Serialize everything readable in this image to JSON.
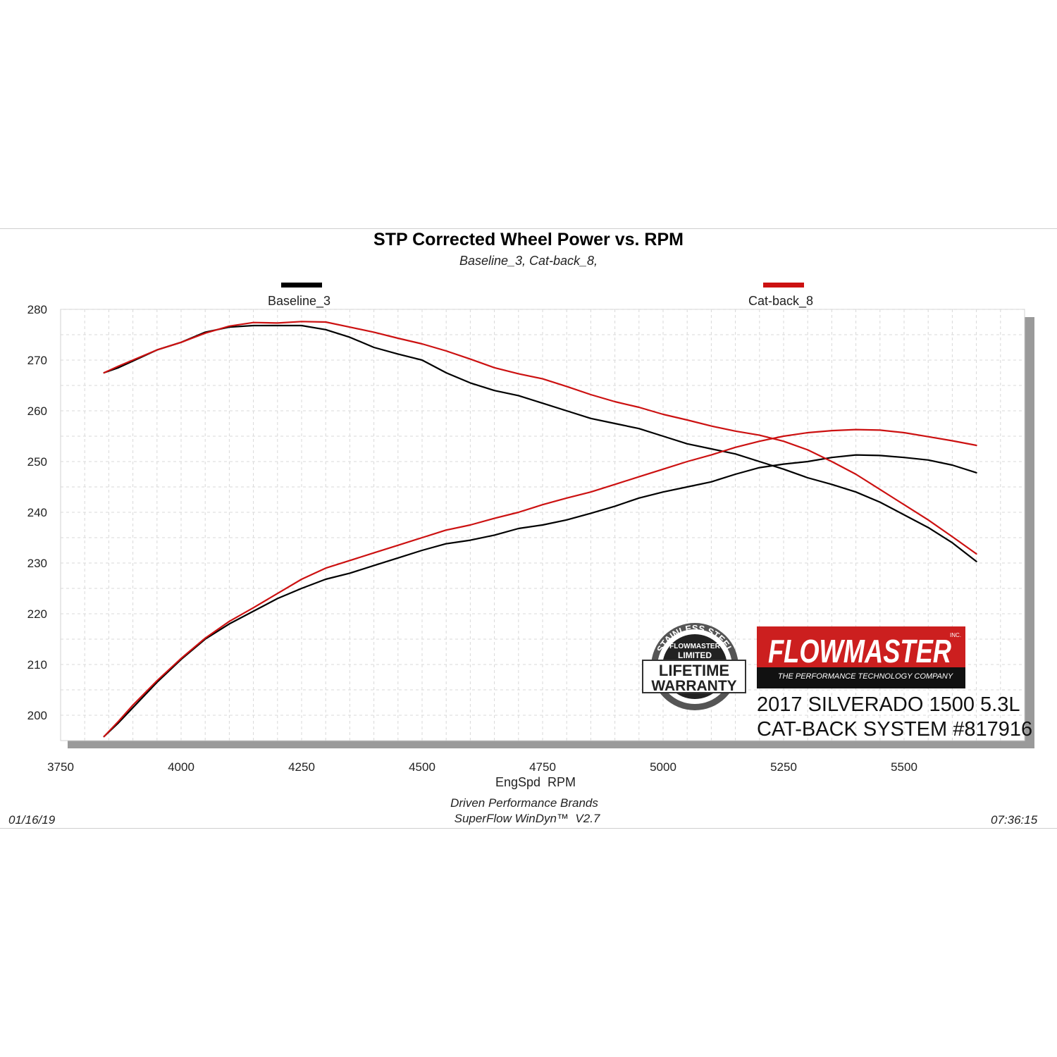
{
  "chart_data": {
    "type": "line",
    "title": "STP Corrected Wheel Power vs. RPM",
    "subtitle": "Baseline_3, Cat-back_8,",
    "xlabel": "EngSpd  RPM",
    "ylabel": "",
    "xlim": [
      3750,
      5750
    ],
    "ylim": [
      195,
      280
    ],
    "x_ticks": [
      3750,
      4000,
      4250,
      4500,
      4750,
      5000,
      5250,
      5500
    ],
    "y_ticks": [
      200,
      210,
      220,
      230,
      240,
      250,
      260,
      270,
      280
    ],
    "grid": true,
    "legend_position": "top",
    "series": [
      {
        "name": "Baseline_3",
        "measure": "power",
        "color": "#000000",
        "x": [
          3840,
          3870,
          3900,
          3950,
          4000,
          4050,
          4100,
          4150,
          4200,
          4250,
          4300,
          4350,
          4400,
          4450,
          4500,
          4550,
          4600,
          4650,
          4700,
          4750,
          4800,
          4850,
          4900,
          4950,
          5000,
          5050,
          5100,
          5150,
          5200,
          5250,
          5300,
          5350,
          5400,
          5450,
          5500,
          5550,
          5600,
          5650
        ],
        "values": [
          195.8,
          198.5,
          201.5,
          206.5,
          211.0,
          215.0,
          218.0,
          220.5,
          223.0,
          225.0,
          226.8,
          228.0,
          229.5,
          231.0,
          232.5,
          233.8,
          234.5,
          235.5,
          236.8,
          237.5,
          238.5,
          239.8,
          241.2,
          242.8,
          244.0,
          245.0,
          246.0,
          247.5,
          248.8,
          249.5,
          250.0,
          250.8,
          251.3,
          251.2,
          250.8,
          250.3,
          249.3,
          247.8
        ]
      },
      {
        "name": "Baseline_3",
        "measure": "torque",
        "color": "#000000",
        "x": [
          3840,
          3870,
          3900,
          3950,
          4000,
          4050,
          4100,
          4150,
          4200,
          4250,
          4300,
          4350,
          4400,
          4450,
          4500,
          4550,
          4600,
          4650,
          4700,
          4750,
          4800,
          4850,
          4900,
          4950,
          5000,
          5050,
          5100,
          5150,
          5200,
          5250,
          5300,
          5350,
          5400,
          5450,
          5500,
          5550,
          5600,
          5650
        ],
        "values": [
          267.5,
          268.5,
          269.8,
          272.0,
          273.5,
          275.5,
          276.5,
          276.8,
          276.8,
          276.8,
          276.0,
          274.5,
          272.5,
          271.2,
          270.0,
          267.5,
          265.5,
          264.0,
          263.0,
          261.5,
          260.0,
          258.5,
          257.5,
          256.5,
          255.0,
          253.5,
          252.5,
          251.5,
          250.0,
          248.5,
          246.8,
          245.5,
          244.0,
          242.0,
          239.5,
          237.0,
          234.0,
          230.3
        ]
      },
      {
        "name": "Cat-back_8",
        "measure": "power",
        "color": "#cc1111",
        "x": [
          3840,
          3870,
          3900,
          3950,
          4000,
          4050,
          4100,
          4150,
          4200,
          4250,
          4300,
          4350,
          4400,
          4450,
          4500,
          4550,
          4600,
          4650,
          4700,
          4750,
          4800,
          4850,
          4900,
          4950,
          5000,
          5050,
          5100,
          5150,
          5200,
          5250,
          5300,
          5350,
          5400,
          5450,
          5500,
          5550,
          5600,
          5650
        ],
        "values": [
          195.8,
          198.8,
          202.0,
          206.8,
          211.2,
          215.2,
          218.5,
          221.2,
          224.0,
          226.8,
          229.0,
          230.5,
          232.0,
          233.5,
          235.0,
          236.5,
          237.5,
          238.8,
          240.0,
          241.5,
          242.8,
          244.0,
          245.5,
          247.0,
          248.5,
          250.0,
          251.3,
          252.8,
          254.0,
          255.0,
          255.7,
          256.1,
          256.3,
          256.2,
          255.7,
          254.9,
          254.1,
          253.2
        ]
      },
      {
        "name": "Cat-back_8",
        "measure": "torque",
        "color": "#cc1111",
        "x": [
          3840,
          3870,
          3900,
          3950,
          4000,
          4050,
          4100,
          4150,
          4200,
          4250,
          4300,
          4350,
          4400,
          4450,
          4500,
          4550,
          4600,
          4650,
          4700,
          4750,
          4800,
          4850,
          4900,
          4950,
          5000,
          5050,
          5100,
          5150,
          5200,
          5250,
          5300,
          5350,
          5400,
          5450,
          5500,
          5550,
          5600,
          5650
        ],
        "values": [
          267.5,
          268.8,
          270.0,
          272.0,
          273.5,
          275.3,
          276.7,
          277.4,
          277.3,
          277.6,
          277.5,
          276.5,
          275.5,
          274.3,
          273.2,
          271.8,
          270.2,
          268.5,
          267.3,
          266.3,
          264.8,
          263.2,
          261.8,
          260.7,
          259.3,
          258.2,
          257.0,
          256.0,
          255.2,
          254.0,
          252.3,
          250.0,
          247.5,
          244.5,
          241.5,
          238.5,
          235.2,
          231.8
        ]
      }
    ],
    "annotations": [
      "2017 SILVERADO 1500 5.3L",
      "CAT-BACK SYSTEM #817916"
    ]
  },
  "legend": {
    "baseline_label": "Baseline_3",
    "catback_label": "Cat-back_8",
    "baseline_color": "#000000",
    "catback_color": "#cc1111"
  },
  "logos": {
    "warranty": {
      "ring_text": "STAINLESS STEEL",
      "brand": "FLOWMASTER",
      "line1": "LIMITED",
      "line2": "LIFETIME",
      "line3": "WARRANTY"
    },
    "brand": {
      "name": "FLOWMASTER",
      "tagline": "THE PERFORMANCE TECHNOLOGY COMPANY",
      "mark": "INC.",
      "color": "#cc1f1f"
    }
  },
  "footer": {
    "date": "01/16/19",
    "company": "Driven Performance Brands",
    "software": "SuperFlow WinDyn™  V2.7",
    "time": "07:36:15"
  }
}
